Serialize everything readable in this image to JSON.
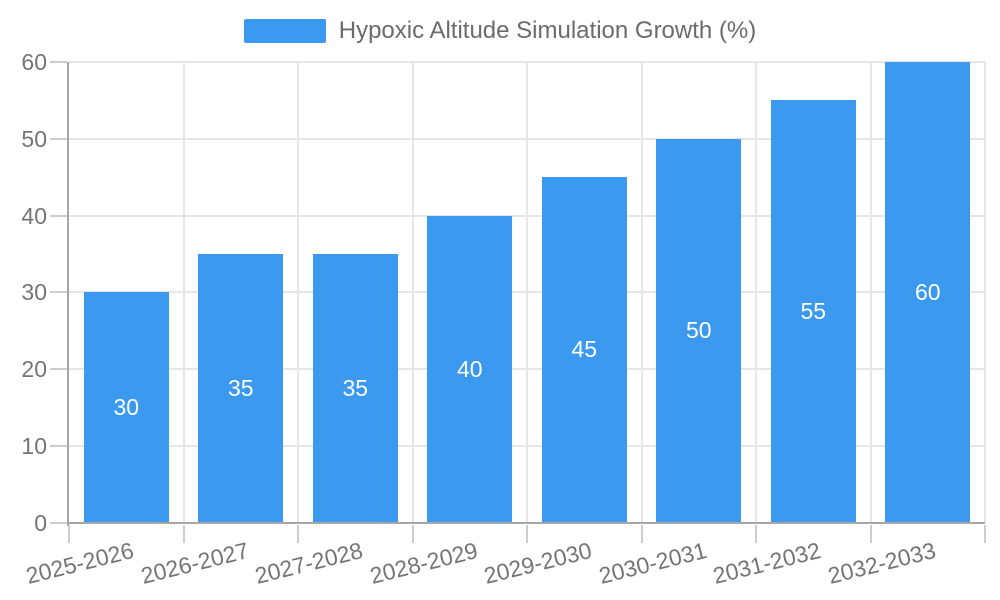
{
  "chart_data": {
    "type": "bar",
    "title": "Hypoxic Altitude Simulation Growth (%)",
    "legend_position": "top",
    "categories": [
      "2025-2026",
      "2026-2027",
      "2027-2028",
      "2028-2029",
      "2029-2030",
      "2030-2031",
      "2031-2032",
      "2032-2033"
    ],
    "values": [
      30,
      35,
      35,
      40,
      45,
      50,
      55,
      60
    ],
    "xlabel": "",
    "ylabel": "",
    "ylim": [
      0,
      60
    ],
    "yticks": [
      0,
      10,
      20,
      30,
      40,
      50,
      60
    ],
    "grid": true,
    "x_label_rotation_deg": -14,
    "bar_color": "#3b99f0",
    "bar_label_color": "#ffffff",
    "axis_label_color": "#757575",
    "legend_text_color": "#6b6b6b",
    "grid_color": "#e6e6e6",
    "tick_color": "#cdcdcd",
    "axis_line_color": "#a6a6a6",
    "background_color": "#ffffff"
  }
}
